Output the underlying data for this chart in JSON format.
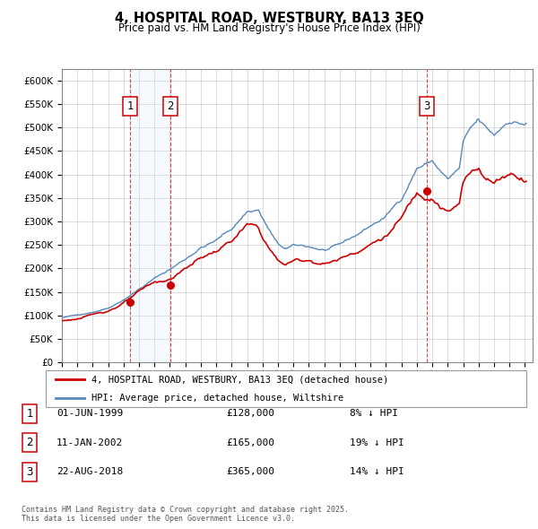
{
  "title": "4, HOSPITAL ROAD, WESTBURY, BA13 3EQ",
  "subtitle": "Price paid vs. HM Land Registry's House Price Index (HPI)",
  "legend_line1": "4, HOSPITAL ROAD, WESTBURY, BA13 3EQ (detached house)",
  "legend_line2": "HPI: Average price, detached house, Wiltshire",
  "footnote": "Contains HM Land Registry data © Crown copyright and database right 2025.\nThis data is licensed under the Open Government Licence v3.0.",
  "property_color": "#cc0000",
  "hpi_color": "#5588bb",
  "hpi_fill_color": "#ddeeff",
  "vspan_color": "#ddeeff",
  "sale_marker_color": "#cc0000",
  "ylim": [
    0,
    625000
  ],
  "yticks": [
    0,
    50000,
    100000,
    150000,
    200000,
    250000,
    300000,
    350000,
    400000,
    450000,
    500000,
    550000,
    600000
  ],
  "sales": [
    {
      "date": 1999.42,
      "price": 128000,
      "label": "1"
    },
    {
      "date": 2002.03,
      "price": 165000,
      "label": "2"
    },
    {
      "date": 2018.64,
      "price": 365000,
      "label": "3"
    }
  ],
  "sale_annotations": [
    {
      "label": "1",
      "date": "01-JUN-1999",
      "price": "£128,000",
      "pct": "8% ↓ HPI"
    },
    {
      "label": "2",
      "date": "11-JAN-2002",
      "price": "£165,000",
      "pct": "19% ↓ HPI"
    },
    {
      "label": "3",
      "date": "22-AUG-2018",
      "price": "£365,000",
      "pct": "14% ↓ HPI"
    }
  ],
  "vline_dates": [
    1999.42,
    2002.03,
    2018.64
  ],
  "vline_labels": [
    "1",
    "2",
    "3"
  ],
  "xmin": 1995.0,
  "xmax": 2025.5
}
